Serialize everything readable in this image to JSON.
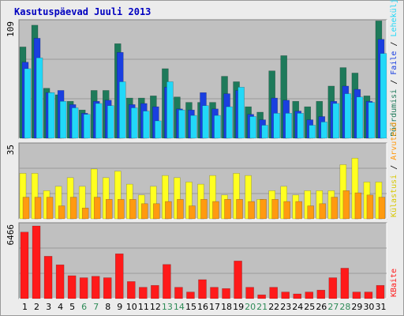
{
  "title": "Kasutuspäevad Juuli 2013",
  "colors": {
    "background": "#ececec",
    "panel": "#c0c0c0",
    "gridline": "#9a9a9a",
    "weekday_label": "#000000",
    "weekend_label": "#2e8b57",
    "pageviews": "#1e7a5a",
    "files": "#1a3fe0",
    "hits": "#22d8f8",
    "visits": "#ffff20",
    "sites": "#ff9a10",
    "kbytes": "#ff1a1a"
  },
  "chart_data": [
    {
      "type": "bar",
      "panel": "top",
      "ymax_label": "109",
      "right_label_parts": [
        {
          "text": "Pöördumisi",
          "color": "#1e7a5a"
        },
        {
          "text": " / ",
          "color": "#000000"
        },
        {
          "text": "Faile",
          "color": "#1a3fe0"
        },
        {
          "text": " / ",
          "color": "#000000"
        },
        {
          "text": "Leheküljed",
          "color": "#22d8f8"
        }
      ],
      "ylim": [
        0,
        109
      ],
      "categories": [
        "1",
        "2",
        "3",
        "4",
        "5",
        "6",
        "7",
        "8",
        "9",
        "10",
        "11",
        "12",
        "13",
        "14",
        "15",
        "16",
        "17",
        "18",
        "19",
        "20",
        "21",
        "22",
        "23",
        "24",
        "25",
        "26",
        "27",
        "28",
        "29",
        "30",
        "31"
      ],
      "weekend_days": [
        "6",
        "7",
        "13",
        "14",
        "20",
        "21",
        "27",
        "28"
      ],
      "series": [
        {
          "name": "Pöördumisi",
          "color": "#1e7a5a",
          "values": [
            84,
            104,
            46,
            40,
            34,
            26,
            44,
            44,
            87,
            37,
            37,
            39,
            64,
            38,
            33,
            33,
            33,
            57,
            52,
            29,
            24,
            62,
            76,
            34,
            29,
            34,
            48,
            65,
            60,
            39,
            108
          ]
        },
        {
          "name": "Faile",
          "color": "#1a3fe0",
          "values": [
            70,
            92,
            42,
            44,
            31,
            23,
            34,
            35,
            79,
            31,
            32,
            29,
            47,
            27,
            26,
            42,
            27,
            41,
            44,
            22,
            17,
            37,
            35,
            25,
            17,
            20,
            34,
            48,
            45,
            34,
            91
          ]
        },
        {
          "name": "Leheküljed",
          "color": "#22d8f8",
          "values": [
            64,
            74,
            42,
            34,
            28,
            22,
            32,
            30,
            52,
            28,
            25,
            16,
            52,
            26,
            21,
            30,
            21,
            29,
            47,
            20,
            12,
            23,
            23,
            23,
            12,
            15,
            32,
            41,
            38,
            33,
            78
          ]
        }
      ]
    },
    {
      "type": "bar",
      "panel": "middle",
      "ymax_label": "35",
      "right_label_parts": [
        {
          "text": "Külastusi",
          "color": "#d8c800"
        },
        {
          "text": " / ",
          "color": "#000000"
        },
        {
          "text": "Arvuteid",
          "color": "#ff9a10"
        }
      ],
      "ylim": [
        0,
        35
      ],
      "categories": [
        "1",
        "2",
        "3",
        "4",
        "5",
        "6",
        "7",
        "8",
        "9",
        "10",
        "11",
        "12",
        "13",
        "14",
        "15",
        "16",
        "17",
        "18",
        "19",
        "20",
        "21",
        "22",
        "23",
        "24",
        "25",
        "26",
        "27",
        "28",
        "29",
        "30",
        "31"
      ],
      "series": [
        {
          "name": "Külastusi",
          "color": "#ffff20",
          "values": [
            21,
            21,
            13,
            15,
            19,
            15,
            23,
            19,
            22,
            16,
            11,
            15,
            20,
            19,
            17,
            16,
            20,
            11,
            21,
            20,
            9,
            13,
            15,
            11,
            13,
            13,
            13,
            25,
            28,
            17,
            17
          ]
        },
        {
          "name": "Arvuteid",
          "color": "#ff9a10",
          "values": [
            10,
            10,
            10,
            6,
            10,
            5,
            10,
            9,
            9,
            9,
            7,
            7,
            8,
            9,
            6,
            9,
            8,
            9,
            9,
            8,
            9,
            9,
            8,
            8,
            6,
            7,
            10,
            13,
            12,
            11,
            10
          ]
        }
      ]
    },
    {
      "type": "bar",
      "panel": "bottom",
      "ymax_label": "6466",
      "right_label_parts": [
        {
          "text": "KBaite",
          "color": "#ff1a1a"
        }
      ],
      "ylim": [
        0,
        6466
      ],
      "categories": [
        "1",
        "2",
        "3",
        "4",
        "5",
        "6",
        "7",
        "8",
        "9",
        "10",
        "11",
        "12",
        "13",
        "14",
        "15",
        "16",
        "17",
        "18",
        "19",
        "20",
        "21",
        "22",
        "23",
        "24",
        "25",
        "26",
        "27",
        "28",
        "29",
        "30",
        "31"
      ],
      "series": [
        {
          "name": "KBaite",
          "color": "#ff1a1a",
          "values": [
            5920,
            6466,
            3770,
            3010,
            2040,
            1860,
            1990,
            1860,
            3990,
            1520,
            1010,
            1180,
            3040,
            1010,
            590,
            1690,
            1010,
            900,
            3350,
            1010,
            340,
            1010,
            590,
            420,
            590,
            760,
            1860,
            2710,
            590,
            590,
            1180
          ]
        }
      ]
    }
  ]
}
